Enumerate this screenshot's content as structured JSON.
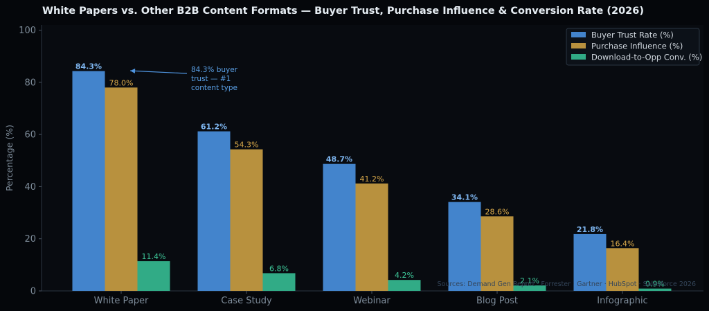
{
  "chart_data": {
    "type": "bar",
    "title": "White Papers vs. Other B2B Content Formats — Buyer Trust, Purchase Influence & Conversion Rate (2026)",
    "xlabel": "",
    "ylabel": "Percentage (%)",
    "ylim": [
      0,
      102
    ],
    "yticks": [
      "0",
      "20",
      "40",
      "60",
      "80",
      "100"
    ],
    "ytick_values": [
      0,
      20,
      40,
      60,
      80,
      100
    ],
    "grid": false,
    "legend_position": "top-right",
    "categories": [
      "White Paper",
      "Case Study",
      "Webinar",
      "Blog Post",
      "Infographic"
    ],
    "series": [
      {
        "name": "Buyer Trust Rate (%)",
        "color": "#4384cc",
        "label_color": "#7eb6f0",
        "values": [
          84.3,
          61.2,
          48.7,
          34.1,
          21.8
        ],
        "labels": [
          "84.3%",
          "61.2%",
          "48.7%",
          "34.1%",
          "21.8%"
        ]
      },
      {
        "name": "Purchase Influence (%)",
        "color": "#b8913e",
        "label_color": "#d9a94a",
        "values": [
          78.0,
          54.3,
          41.2,
          28.6,
          16.4
        ],
        "labels": [
          "78.0%",
          "54.3%",
          "41.2%",
          "28.6%",
          "16.4%"
        ]
      },
      {
        "name": "Download-to-Opp Conv. (%)",
        "color": "#31ab86",
        "label_color": "#3ec99a",
        "values": [
          11.4,
          6.8,
          4.2,
          2.1,
          0.9
        ],
        "labels": [
          "11.4%",
          "6.8%",
          "4.2%",
          "2.1%",
          "0.9%"
        ]
      }
    ],
    "annotation": {
      "lines": [
        "84.3% buyer",
        "trust — #1",
        "content type"
      ],
      "target_category": "White Paper",
      "target_value": 84.3
    },
    "source": "Sources: Demand Gen Report · Forrester · Gartner · HubSpot · Salesforce 2026"
  }
}
